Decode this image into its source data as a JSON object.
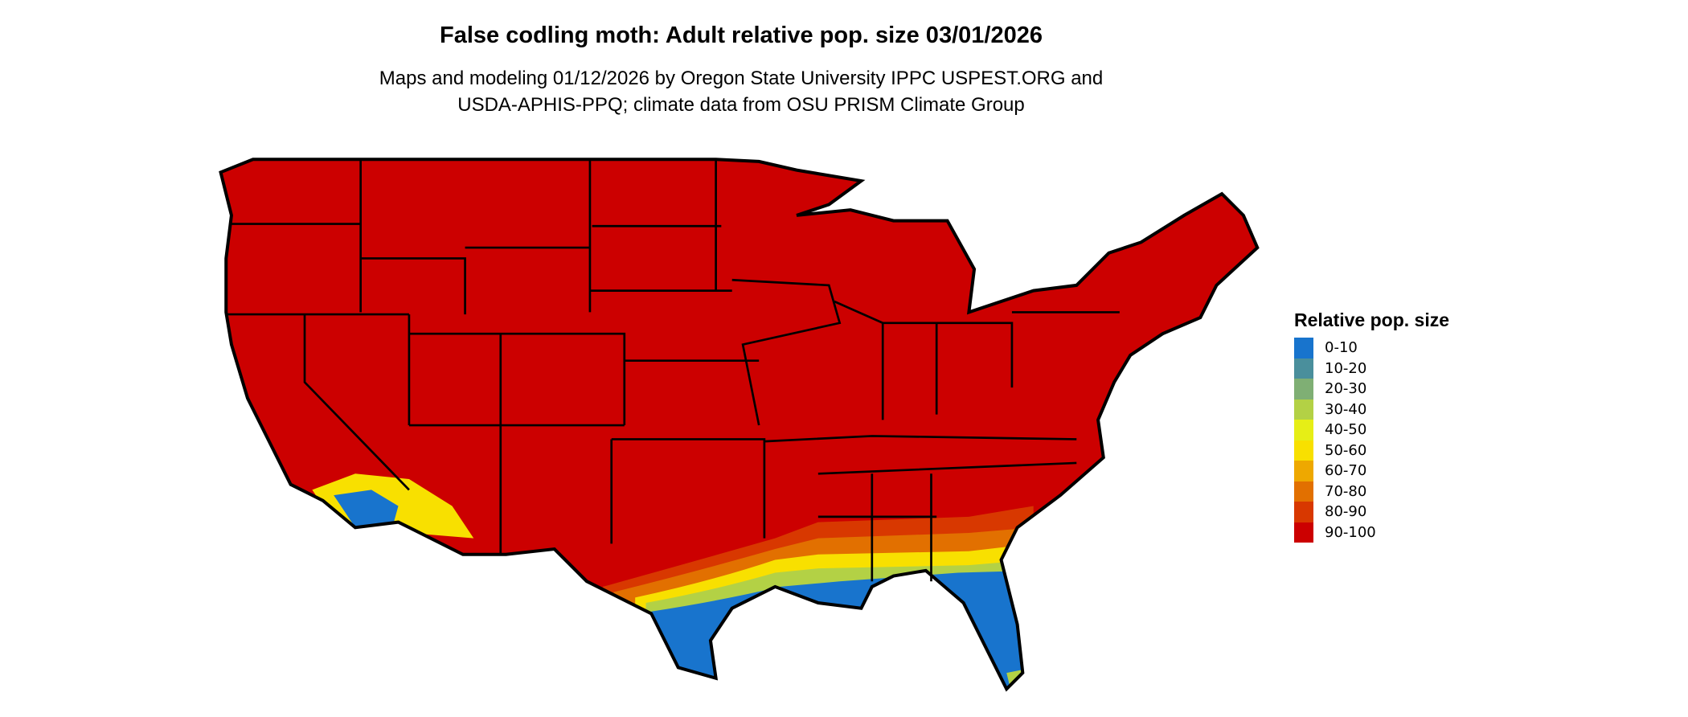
{
  "title": "False codling moth: Adult relative pop. size 03/01/2026",
  "subtitle_lines": [
    "Maps and modeling 01/12/2026 by Oregon State University IPPC USPEST.ORG and",
    "USDA-APHIS-PPQ; climate data from OSU PRISM Climate Group"
  ],
  "legend": {
    "title": "Relative pop. size",
    "items": [
      {
        "label": "0-10",
        "color": "#1874CD"
      },
      {
        "label": "10-20",
        "color": "#4A8F9C"
      },
      {
        "label": "20-30",
        "color": "#7FAF74"
      },
      {
        "label": "30-40",
        "color": "#B3D145"
      },
      {
        "label": "40-50",
        "color": "#E6EE16"
      },
      {
        "label": "50-60",
        "color": "#F8E000"
      },
      {
        "label": "60-70",
        "color": "#EEA800"
      },
      {
        "label": "70-80",
        "color": "#E27000"
      },
      {
        "label": "80-90",
        "color": "#D83800"
      },
      {
        "label": "90-100",
        "color": "#CC0000"
      }
    ]
  },
  "map": {
    "region": "Contiguous United States",
    "dominant_class": "90-100",
    "low_classes_region": "Gulf Coast, Florida, southern California/Arizona"
  }
}
